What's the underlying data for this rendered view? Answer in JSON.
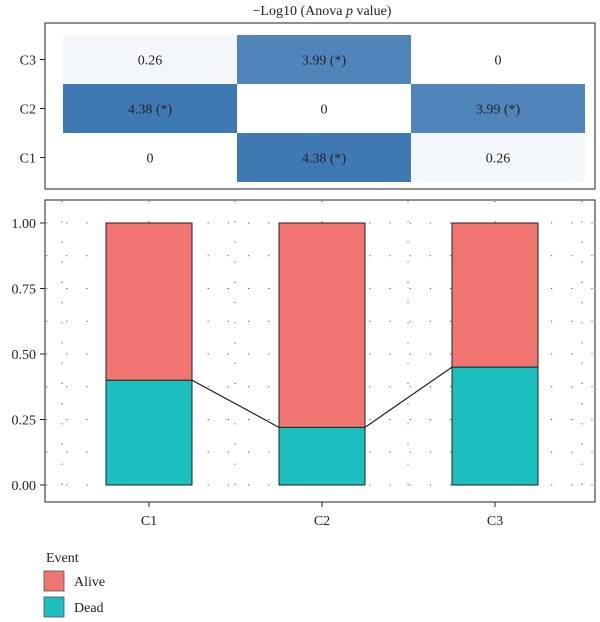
{
  "heatmap": {
    "title_prefix": "−Log10 (Anova ",
    "title_italic": "p",
    "title_suffix": " value)",
    "rows": [
      "C3",
      "C2",
      "C1"
    ],
    "cells": [
      [
        "0.26",
        "3.99 (*)",
        "0"
      ],
      [
        "4.38 (*)",
        "0",
        "3.99 (*)"
      ],
      [
        "0",
        "4.38 (*)",
        "0.26"
      ]
    ],
    "values": [
      [
        0.26,
        3.99,
        0
      ],
      [
        4.38,
        0,
        3.99
      ],
      [
        0,
        4.38,
        0.26
      ]
    ]
  },
  "colors": {
    "alive": "#f07470",
    "dead": "#1cbfc0",
    "heat_high": "#3f79b4",
    "heat_low": "#ffffff"
  },
  "chart_data": {
    "type": "bar",
    "stacked": true,
    "categories": [
      "C1",
      "C2",
      "C3"
    ],
    "series": [
      {
        "name": "Dead",
        "values": [
          0.4,
          0.22,
          0.45
        ]
      },
      {
        "name": "Alive",
        "values": [
          0.6,
          0.78,
          0.55
        ]
      }
    ],
    "ylim": [
      0,
      1
    ],
    "yticks": [
      "0.00",
      "0.25",
      "0.50",
      "0.75",
      "1.00"
    ],
    "ytick_values": [
      0,
      0.25,
      0.5,
      0.75,
      1.0
    ],
    "legend_title": "Event",
    "legend": [
      "Alive",
      "Dead"
    ],
    "legend_placement": "bottom-left",
    "grid": "dotted"
  }
}
